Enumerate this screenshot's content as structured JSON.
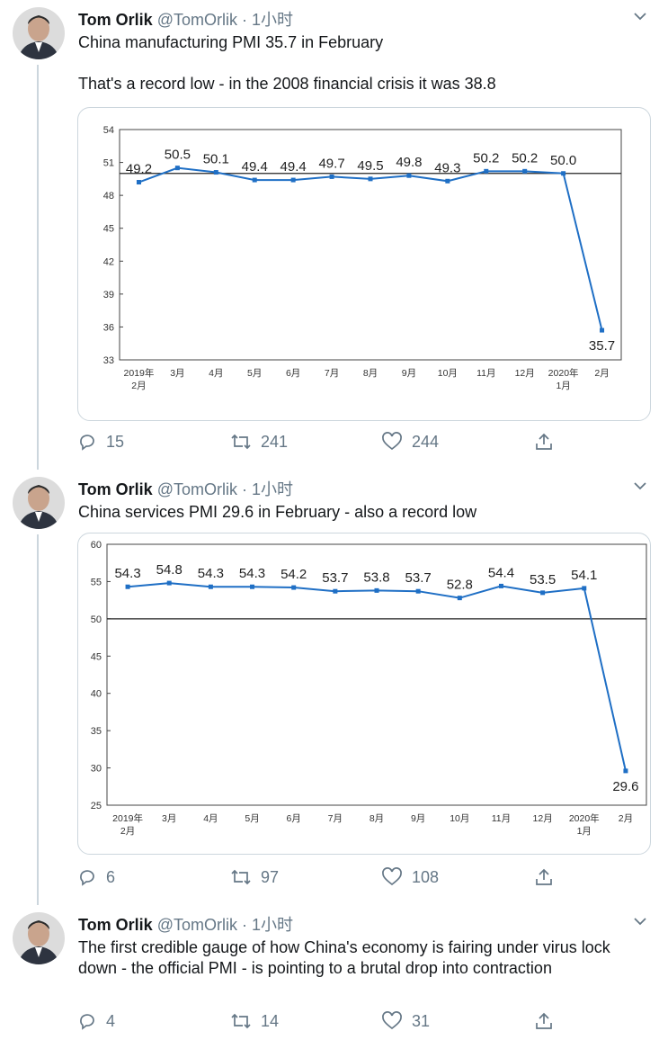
{
  "author": {
    "name": "Tom Orlik",
    "handle": "@TomOrlik",
    "sep": "·",
    "time": "1小时"
  },
  "tweets": [
    {
      "paragraphs": [
        "China manufacturing PMI 35.7 in February",
        "That's a record low - in the 2008 financial crisis it was 38.8"
      ],
      "replies": "15",
      "retweets": "241",
      "likes": "244"
    },
    {
      "paragraphs": [
        "China services PMI 29.6 in February - also a record low"
      ],
      "replies": "6",
      "retweets": "97",
      "likes": "108"
    },
    {
      "paragraphs": [
        "The first credible gauge of how China's economy is fairing under virus lock down - the official PMI - is pointing to a brutal drop into contraction"
      ],
      "replies": "4",
      "retweets": "14",
      "likes": "31"
    }
  ],
  "icons": {
    "reply": "reply-icon",
    "retweet": "retweet-icon",
    "like": "heart-icon",
    "share": "share-icon",
    "more": "chevron-down-icon"
  },
  "colors": {
    "line": "#1f6fc5",
    "accent_text": "#657786",
    "border": "#ccd6dd"
  },
  "chart_data": [
    {
      "type": "line",
      "categories": [
        [
          "2019年",
          "2月"
        ],
        [
          "3月"
        ],
        [
          "4月"
        ],
        [
          "5月"
        ],
        [
          "6月"
        ],
        [
          "7月"
        ],
        [
          "8月"
        ],
        [
          "9月"
        ],
        [
          "10月"
        ],
        [
          "11月"
        ],
        [
          "12月"
        ],
        [
          "2020年",
          "1月"
        ],
        [
          "2月"
        ]
      ],
      "values": [
        49.2,
        50.5,
        50.1,
        49.4,
        49.4,
        49.7,
        49.5,
        49.8,
        49.3,
        50.2,
        50.2,
        50.0,
        35.7
      ],
      "data_labels": [
        "49.2",
        "50.5",
        "50.1",
        "49.4",
        "49.4",
        "49.7",
        "49.5",
        "49.8",
        "49.3",
        "50.2",
        "50.2",
        "50.0",
        "35.7"
      ],
      "yticks": [
        54,
        51,
        48,
        45,
        42,
        39,
        36,
        33
      ],
      "ylim": [
        33,
        54
      ],
      "reference_line": 50
    },
    {
      "type": "line",
      "categories": [
        [
          "2019年",
          "2月"
        ],
        [
          "3月"
        ],
        [
          "4月"
        ],
        [
          "5月"
        ],
        [
          "6月"
        ],
        [
          "7月"
        ],
        [
          "8月"
        ],
        [
          "9月"
        ],
        [
          "10月"
        ],
        [
          "11月"
        ],
        [
          "12月"
        ],
        [
          "2020年",
          "1月"
        ],
        [
          "2月"
        ]
      ],
      "values": [
        54.3,
        54.8,
        54.3,
        54.3,
        54.2,
        53.7,
        53.8,
        53.7,
        52.8,
        54.4,
        53.5,
        54.1,
        29.6
      ],
      "data_labels": [
        "54.3",
        "54.8",
        "54.3",
        "54.3",
        "54.2",
        "53.7",
        "53.8",
        "53.7",
        "52.8",
        "54.4",
        "53.5",
        "54.1",
        "29.6"
      ],
      "yticks": [
        60,
        55,
        50,
        45,
        40,
        35,
        30,
        25
      ],
      "ylim": [
        25,
        60
      ],
      "reference_line": 50
    }
  ]
}
